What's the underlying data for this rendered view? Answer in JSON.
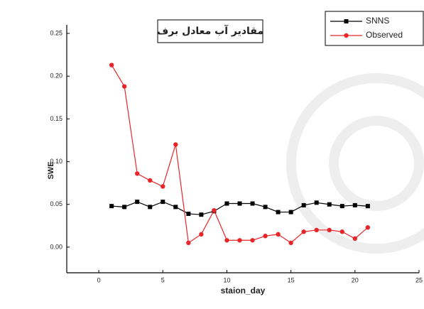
{
  "chart_data": {
    "type": "line",
    "title": "مقادير آب معادل برف",
    "x_label": "staion_day",
    "y_label": "SWE",
    "x": [
      1,
      2,
      3,
      4,
      5,
      6,
      7,
      8,
      9,
      10,
      11,
      12,
      13,
      14,
      15,
      16,
      17,
      18,
      19,
      20,
      21
    ],
    "series": [
      {
        "name": "SNNS",
        "color": "#000000",
        "marker": "square",
        "values": [
          0.048,
          0.047,
          0.053,
          0.047,
          0.053,
          0.047,
          0.039,
          0.038,
          0.042,
          0.051,
          0.051,
          0.051,
          0.047,
          0.041,
          0.041,
          0.049,
          0.052,
          0.05,
          0.048,
          0.049,
          0.048
        ]
      },
      {
        "name": "Observed",
        "color": "#e8262a",
        "marker": "circle",
        "values": [
          0.213,
          0.188,
          0.086,
          0.078,
          0.071,
          0.12,
          0.005,
          0.015,
          0.043,
          0.008,
          0.008,
          0.008,
          0.013,
          0.015,
          0.005,
          0.018,
          0.02,
          0.02,
          0.018,
          0.01,
          0.023
        ]
      }
    ],
    "xlim": [
      -2.5,
      25
    ],
    "xticks": [
      0,
      5,
      10,
      15,
      20,
      25
    ],
    "ylim": [
      -0.03,
      0.26
    ],
    "yticks": [
      {
        "value": 0,
        "label": "0.00"
      },
      0.05,
      {
        "value": 0.1,
        "label": "0.10"
      },
      0.15,
      {
        "value": 0.2,
        "label": "0.20"
      },
      0.25
    ],
    "legend": "top-right"
  }
}
